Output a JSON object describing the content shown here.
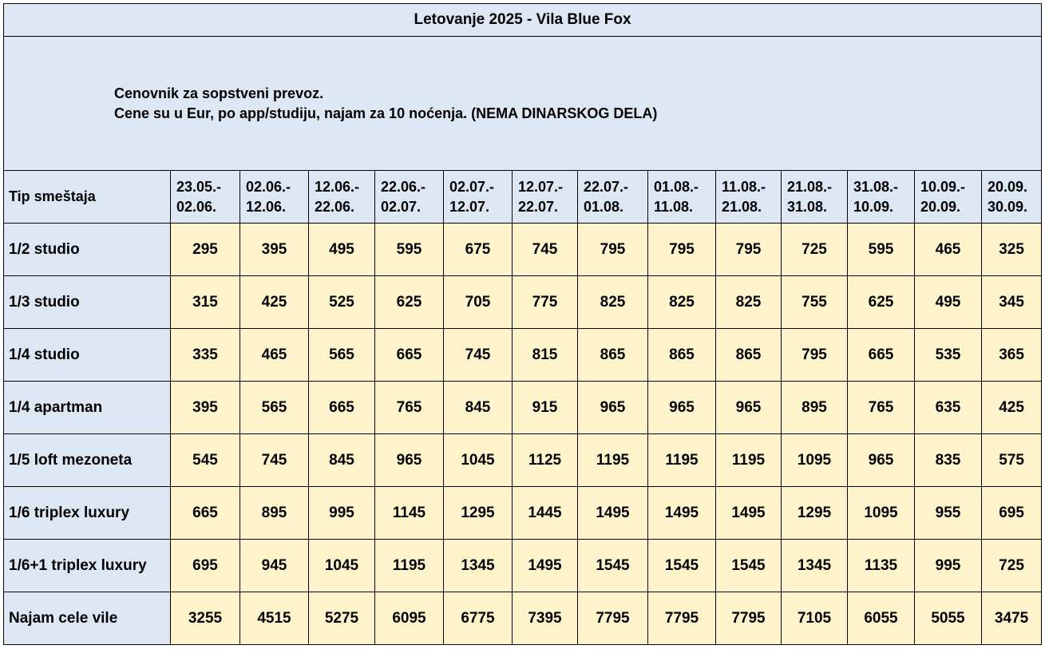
{
  "title": "Letovanje 2025 - Vila Blue Fox",
  "notes": [
    "Cenovnik za sopstveni prevoz.",
    "Cene su u Eur, po app/studiju, najam za 10 noćenja. (NEMA DINARSKOG DELA)"
  ],
  "type_header": "Tip smeštaja",
  "periods": [
    {
      "from": "23.05.-",
      "to": "02.06."
    },
    {
      "from": "02.06.-",
      "to": "12.06."
    },
    {
      "from": "12.06.-",
      "to": "22.06."
    },
    {
      "from": "22.06.-",
      "to": "02.07."
    },
    {
      "from": "02.07.-",
      "to": "12.07."
    },
    {
      "from": "12.07.-",
      "to": "22.07."
    },
    {
      "from": "22.07.-",
      "to": "01.08."
    },
    {
      "from": "01.08.-",
      "to": "11.08."
    },
    {
      "from": "11.08.-",
      "to": "21.08."
    },
    {
      "from": "21.08.-",
      "to": "31.08."
    },
    {
      "from": "31.08.-",
      "to": "10.09."
    },
    {
      "from": "10.09.-",
      "to": "20.09."
    },
    {
      "from": "20.09.",
      "to": "30.09."
    }
  ],
  "rows": [
    {
      "type": "1/2 studio",
      "prices": [
        "295",
        "395",
        "495",
        "595",
        "675",
        "745",
        "795",
        "795",
        "795",
        "725",
        "595",
        "465",
        "325"
      ]
    },
    {
      "type": "1/3 studio",
      "prices": [
        "315",
        "425",
        "525",
        "625",
        "705",
        "775",
        "825",
        "825",
        "825",
        "755",
        "625",
        "495",
        "345"
      ]
    },
    {
      "type": "1/4 studio",
      "prices": [
        "335",
        "465",
        "565",
        "665",
        "745",
        "815",
        "865",
        "865",
        "865",
        "795",
        "665",
        "535",
        "365"
      ]
    },
    {
      "type": "1/4 apartman",
      "prices": [
        "395",
        "565",
        "665",
        "765",
        "845",
        "915",
        "965",
        "965",
        "965",
        "895",
        "765",
        "635",
        "425"
      ]
    },
    {
      "type": "1/5 loft mezoneta",
      "prices": [
        "545",
        "745",
        "845",
        "965",
        "1045",
        "1125",
        "1195",
        "1195",
        "1195",
        "1095",
        "965",
        "835",
        "575"
      ]
    },
    {
      "type": "1/6 triplex luxury",
      "prices": [
        "665",
        "895",
        "995",
        "1145",
        "1295",
        "1445",
        "1495",
        "1495",
        "1495",
        "1295",
        "1095",
        "955",
        "695"
      ]
    },
    {
      "type": "1/6+1 triplex luxury",
      "prices": [
        "695",
        "945",
        "1045",
        "1195",
        "1345",
        "1495",
        "1545",
        "1545",
        "1545",
        "1345",
        "1135",
        "995",
        "725"
      ]
    },
    {
      "type": "Najam cele vile",
      "prices": [
        "3255",
        "4515",
        "5275",
        "6095",
        "6775",
        "7395",
        "7795",
        "7795",
        "7795",
        "7105",
        "6055",
        "5055",
        "3475"
      ]
    }
  ],
  "colors": {
    "header_bg": "#dde7f4",
    "price_bg": "#fff3cc",
    "border": "#000000"
  }
}
